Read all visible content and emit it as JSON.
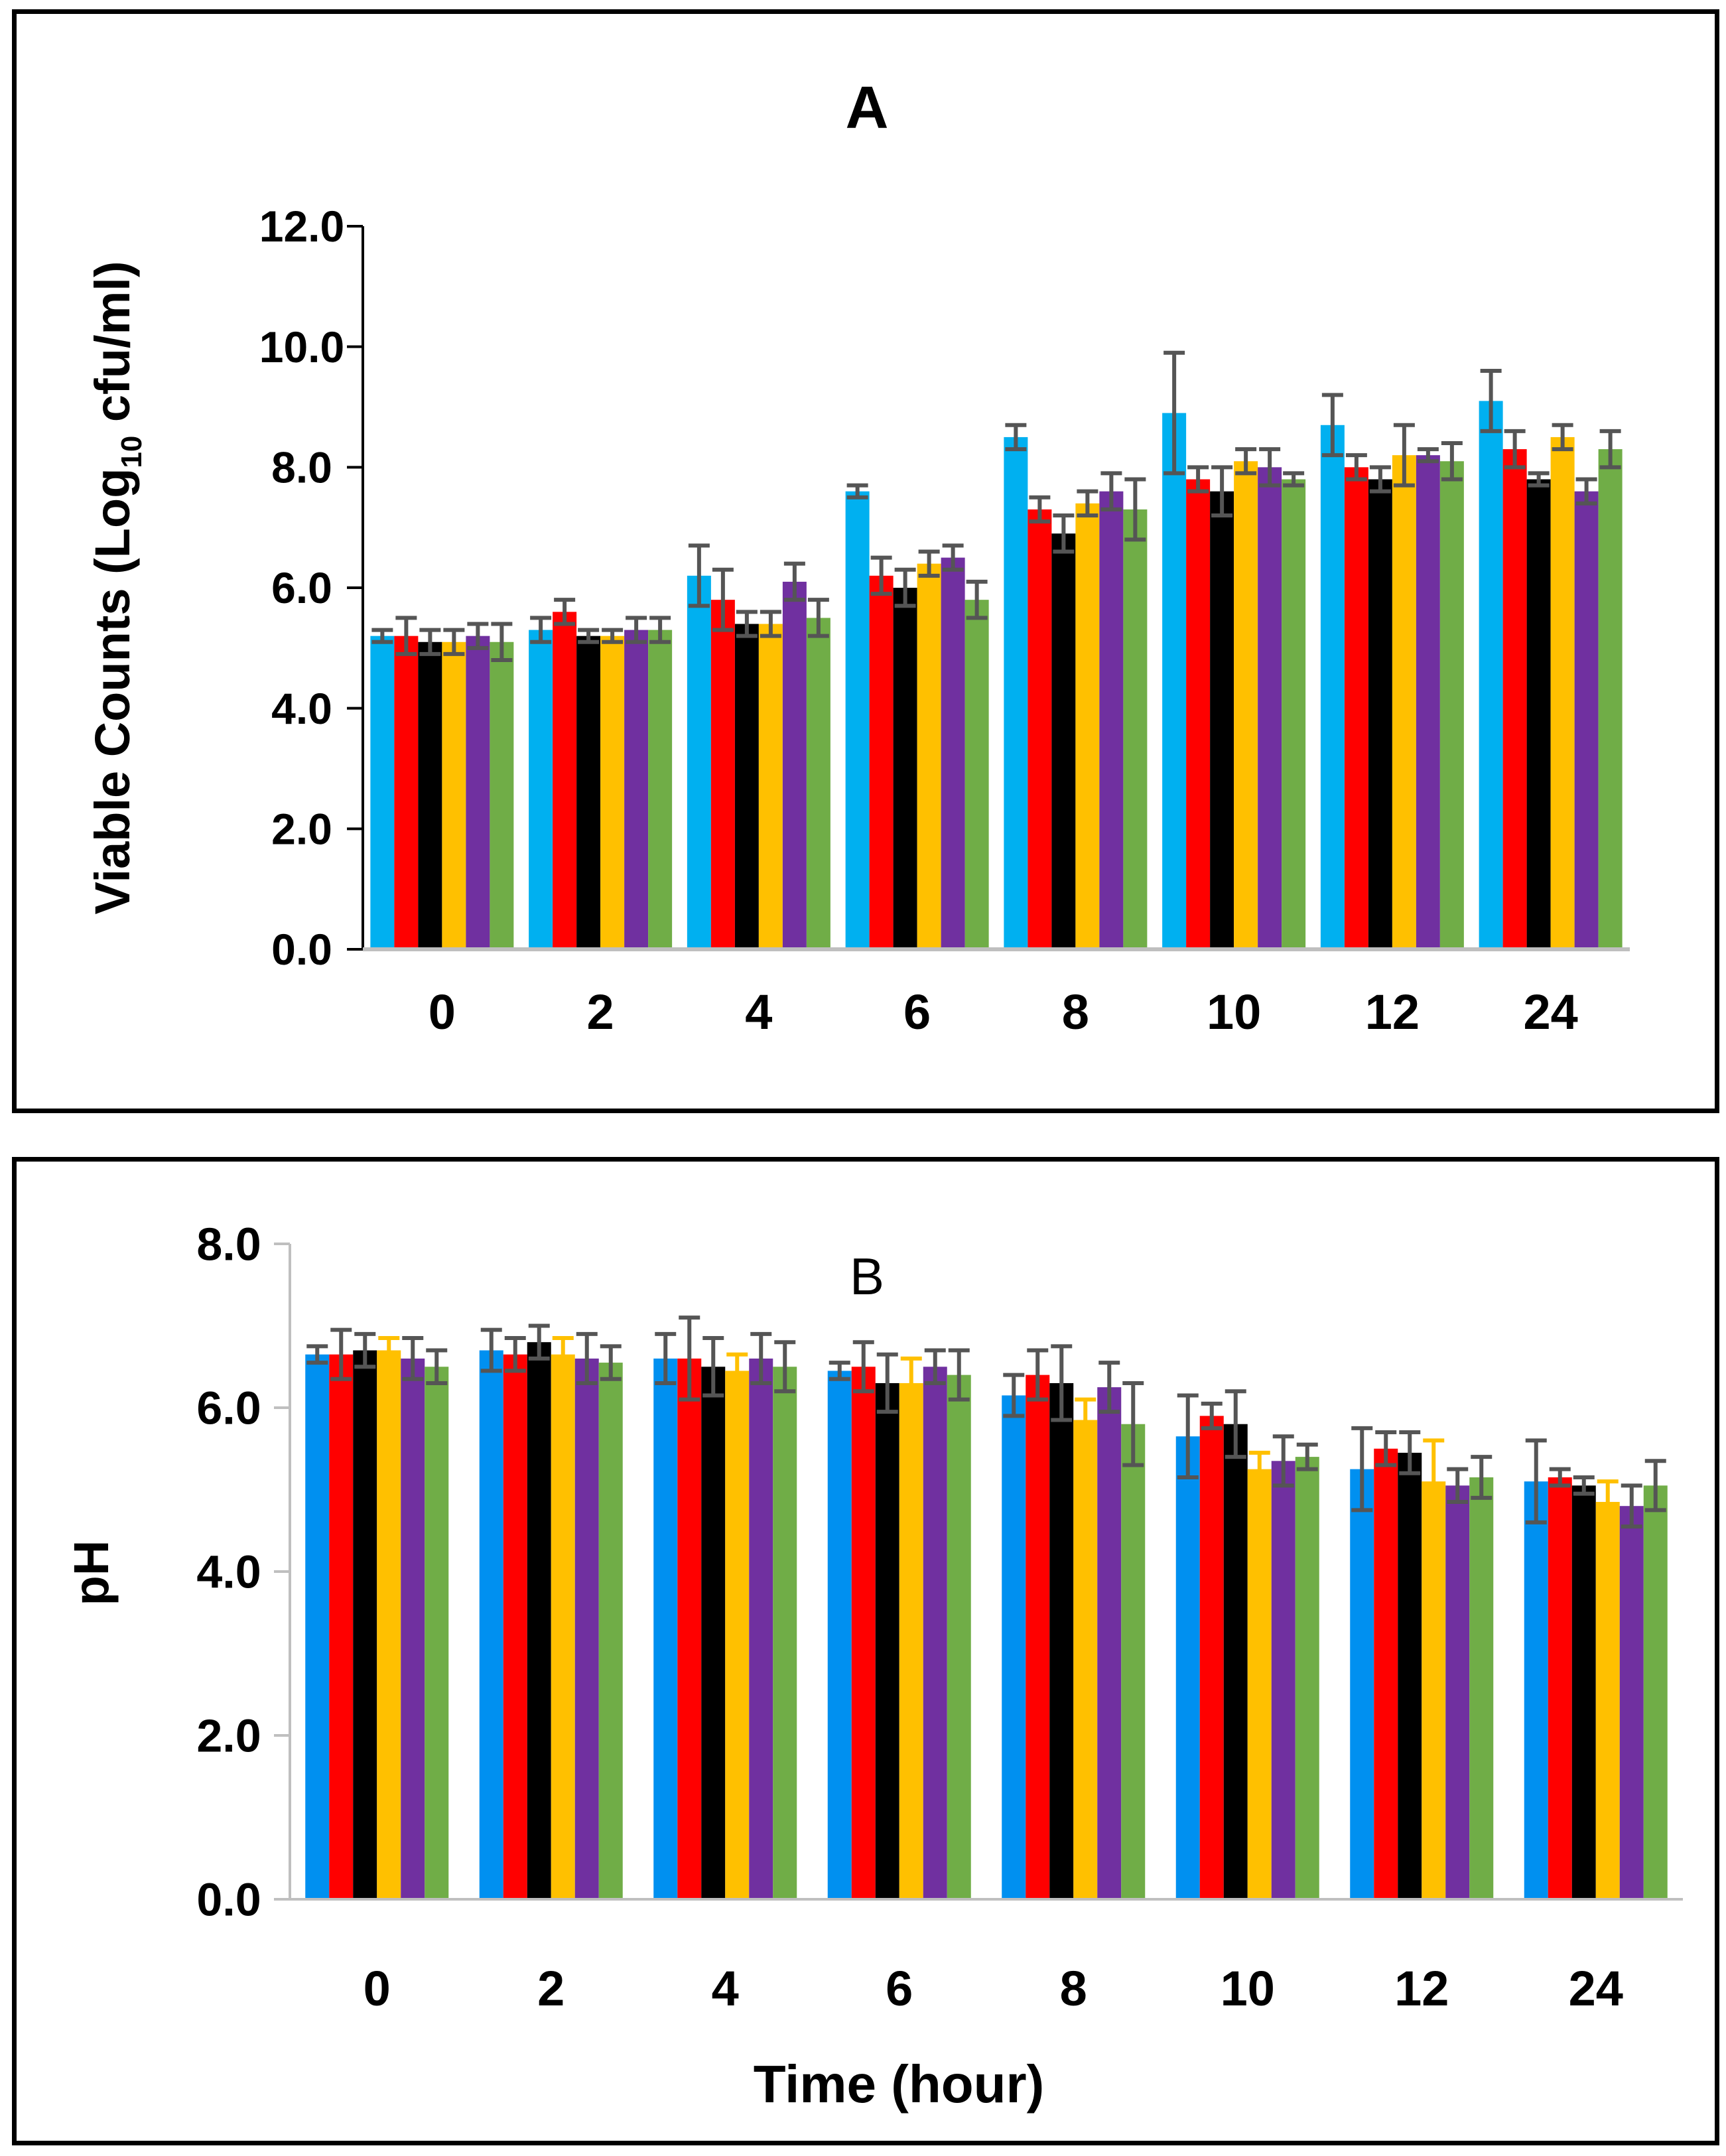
{
  "chart_data": [
    {
      "type": "bar",
      "title": "A",
      "xlabel": "",
      "ylabel": "Viable Counts (Log",
      "ylabel_sub": "10",
      "ylabel_tail": " cfu/ml)",
      "ylim": [
        0,
        12
      ],
      "yticks": [
        "0.0",
        "2.0",
        "4.0",
        "6.0",
        "8.0",
        "10.0",
        "12.0"
      ],
      "categories": [
        "0",
        "2",
        "4",
        "6",
        "8",
        "10",
        "12",
        "24"
      ],
      "series": [
        {
          "color": "#00B0F0",
          "values": [
            5.2,
            5.3,
            6.2,
            7.6,
            8.5,
            8.9,
            8.7,
            9.1
          ],
          "errors": [
            0.1,
            0.2,
            0.5,
            0.1,
            0.2,
            1.0,
            0.5,
            0.5
          ]
        },
        {
          "color": "#FF0000",
          "values": [
            5.2,
            5.6,
            5.8,
            6.2,
            7.3,
            7.8,
            8.0,
            8.3
          ],
          "errors": [
            0.3,
            0.2,
            0.5,
            0.3,
            0.2,
            0.2,
            0.2,
            0.3
          ]
        },
        {
          "color": "#000000",
          "values": [
            5.1,
            5.2,
            5.4,
            6.0,
            6.9,
            7.6,
            7.8,
            7.8
          ],
          "errors": [
            0.2,
            0.1,
            0.2,
            0.3,
            0.3,
            0.4,
            0.2,
            0.1
          ]
        },
        {
          "color": "#FFC000",
          "values": [
            5.1,
            5.2,
            5.4,
            6.4,
            7.4,
            8.1,
            8.2,
            8.5
          ],
          "errors": [
            0.2,
            0.1,
            0.2,
            0.2,
            0.2,
            0.2,
            0.5,
            0.2
          ]
        },
        {
          "color": "#7030A0",
          "values": [
            5.2,
            5.3,
            6.1,
            6.5,
            7.6,
            8.0,
            8.2,
            7.6
          ],
          "errors": [
            0.2,
            0.2,
            0.3,
            0.2,
            0.3,
            0.3,
            0.1,
            0.2
          ]
        },
        {
          "color": "#70AD47",
          "values": [
            5.1,
            5.3,
            5.5,
            5.8,
            7.3,
            7.8,
            8.1,
            8.3
          ],
          "errors": [
            0.3,
            0.2,
            0.3,
            0.3,
            0.5,
            0.1,
            0.3,
            0.3
          ]
        }
      ]
    },
    {
      "type": "bar",
      "title": "B",
      "xlabel": "Time (hour)",
      "ylabel": "pH",
      "ylim": [
        0,
        8
      ],
      "yticks": [
        "0.0",
        "2.0",
        "4.0",
        "6.0",
        "8.0"
      ],
      "categories": [
        "0",
        "2",
        "4",
        "6",
        "8",
        "10",
        "12",
        "24"
      ],
      "series": [
        {
          "color": "#0090F0",
          "values": [
            6.65,
            6.7,
            6.6,
            6.45,
            6.15,
            5.65,
            5.25,
            5.1
          ],
          "errors": [
            0.1,
            0.25,
            0.3,
            0.1,
            0.25,
            0.5,
            0.5,
            0.5
          ]
        },
        {
          "color": "#FF0000",
          "values": [
            6.65,
            6.65,
            6.6,
            6.5,
            6.4,
            5.9,
            5.5,
            5.15
          ],
          "errors": [
            0.3,
            0.2,
            0.5,
            0.3,
            0.3,
            0.15,
            0.2,
            0.1
          ]
        },
        {
          "color": "#000000",
          "values": [
            6.7,
            6.8,
            6.5,
            6.3,
            6.3,
            5.8,
            5.45,
            5.05
          ],
          "errors": [
            0.2,
            0.2,
            0.35,
            0.35,
            0.45,
            0.4,
            0.25,
            0.1
          ]
        },
        {
          "color": "#FFC000",
          "values": [
            6.7,
            6.65,
            6.45,
            6.3,
            5.85,
            5.25,
            5.1,
            4.85
          ],
          "errors": [
            0.15,
            0.2,
            0.2,
            0.3,
            0.25,
            0.2,
            0.5,
            0.25
          ]
        },
        {
          "color": "#7030A0",
          "values": [
            6.6,
            6.6,
            6.6,
            6.5,
            6.25,
            5.35,
            5.05,
            4.8
          ],
          "errors": [
            0.25,
            0.3,
            0.3,
            0.2,
            0.3,
            0.3,
            0.2,
            0.25
          ]
        },
        {
          "color": "#70AD47",
          "values": [
            6.5,
            6.55,
            6.5,
            6.4,
            5.8,
            5.4,
            5.15,
            5.05
          ],
          "errors": [
            0.2,
            0.2,
            0.3,
            0.3,
            0.5,
            0.15,
            0.25,
            0.3
          ]
        }
      ]
    }
  ]
}
